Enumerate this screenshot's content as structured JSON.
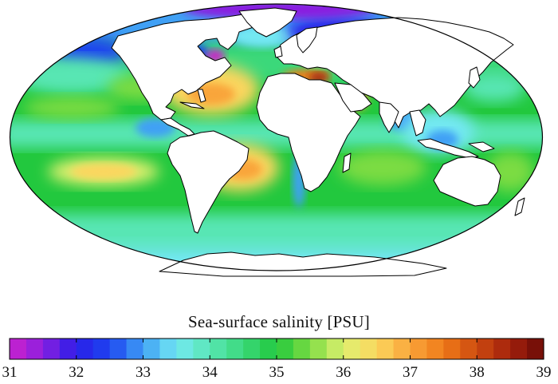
{
  "legend": {
    "title": "Sea-surface salinity [PSU]",
    "min": 31,
    "max": 39,
    "steps": 32,
    "ticks": [
      "31",
      "32",
      "33",
      "34",
      "35",
      "36",
      "37",
      "38",
      "39"
    ]
  },
  "colors": {
    "stops": [
      {
        "v": 31.0,
        "c": "#cc22cc"
      },
      {
        "v": 31.5,
        "c": "#8a1fe0"
      },
      {
        "v": 32.0,
        "c": "#2a1ee8"
      },
      {
        "v": 32.5,
        "c": "#1d44f0"
      },
      {
        "v": 33.0,
        "c": "#3fa0f5"
      },
      {
        "v": 33.5,
        "c": "#73e8f2"
      },
      {
        "v": 34.0,
        "c": "#59e6b4"
      },
      {
        "v": 34.5,
        "c": "#3ad87a"
      },
      {
        "v": 35.0,
        "c": "#22c83e"
      },
      {
        "v": 35.5,
        "c": "#7cdc42"
      },
      {
        "v": 36.0,
        "c": "#dff070"
      },
      {
        "v": 36.5,
        "c": "#fbd65e"
      },
      {
        "v": 37.0,
        "c": "#f9a53a"
      },
      {
        "v": 37.5,
        "c": "#f07a18"
      },
      {
        "v": 38.0,
        "c": "#cc4a10"
      },
      {
        "v": 38.5,
        "c": "#a3200c"
      },
      {
        "v": 39.0,
        "c": "#6a0a06"
      }
    ],
    "land": "#ffffff",
    "coast": "#000000"
  }
}
